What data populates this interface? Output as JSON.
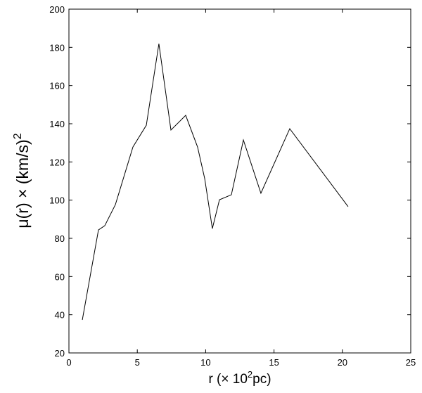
{
  "chart_data": {
    "type": "line",
    "xlabel": {
      "text": "r (× 10",
      "sup": "2",
      "after": "pc)"
    },
    "ylabel": {
      "text": "μ(r) × (km/s)",
      "sup": "2"
    },
    "x": [
      0.98,
      2.16,
      2.62,
      3.4,
      4.68,
      5.66,
      6.58,
      7.46,
      8.54,
      9.41,
      9.93,
      10.49,
      11.01,
      11.88,
      12.76,
      14.04,
      16.15,
      20.42
    ],
    "series": [
      {
        "color": "#000000",
        "values": [
          37.3,
          84.4,
          86.6,
          97.7,
          127.8,
          139.2,
          181.9,
          136.7,
          144.4,
          127.8,
          111.3,
          85.1,
          100.2,
          102.8,
          131.5,
          103.6,
          137.4,
          96.6
        ]
      }
    ],
    "xlim": [
      0,
      25
    ],
    "xticks": [
      0,
      5,
      10,
      15,
      20,
      25
    ],
    "ylim": [
      20,
      200
    ],
    "yticks": [
      20,
      40,
      60,
      80,
      100,
      120,
      140,
      160,
      180,
      200
    ],
    "grid": false
  }
}
